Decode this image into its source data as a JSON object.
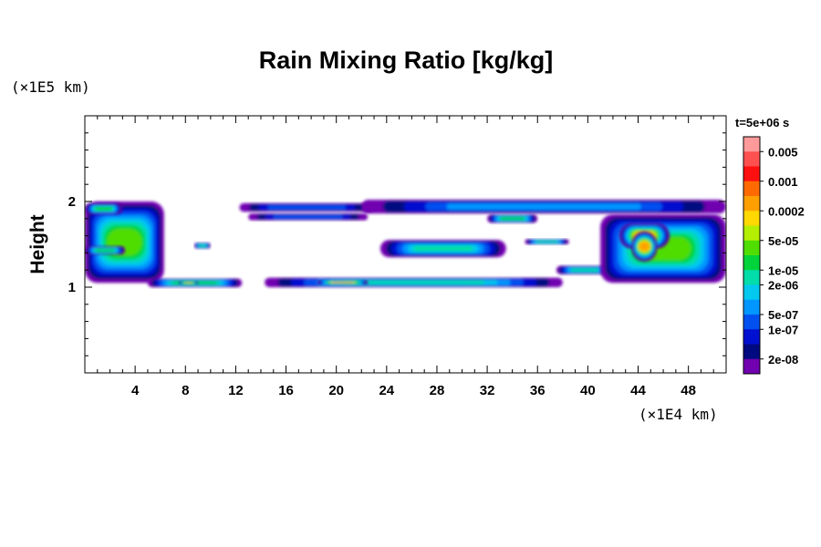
{
  "chart_data": {
    "type": "heatmap",
    "title": "Rain Mixing Ratio [kg/kg]",
    "ylabel": "Height",
    "xunit": "(×1E4 km)",
    "yunit": "(×1E5 km)",
    "time_label": "t=5e+06 s",
    "x_range": [
      0,
      51
    ],
    "y_range": [
      0,
      3
    ],
    "x_ticks": [
      4,
      8,
      12,
      16,
      20,
      24,
      28,
      32,
      36,
      40,
      44,
      48
    ],
    "y_ticks": [
      1,
      2
    ],
    "colorbar": {
      "levels": [
        "0.005",
        "0.001",
        "0.0002",
        "5e-05",
        "1e-05",
        "2e-06",
        "5e-07",
        "1e-07",
        "2e-08"
      ],
      "colors": [
        "#ff9a9a",
        "#ff5050",
        "#ff1010",
        "#ff6a00",
        "#ffa000",
        "#ffd800",
        "#b4ee00",
        "#50dd00",
        "#00d43a",
        "#00dcaa",
        "#00c8ee",
        "#0096ff",
        "#0050f0",
        "#0010d0",
        "#000a80",
        "#7000b0"
      ]
    },
    "bands": [
      {
        "x": [
          0,
          6.3
        ],
        "y": [
          1.05,
          2.0
        ],
        "level": 7
      },
      {
        "x": [
          0,
          3.0
        ],
        "y": [
          1.85,
          1.98
        ],
        "level": 8
      },
      {
        "x": [
          0,
          3.2
        ],
        "y": [
          1.38,
          1.48
        ],
        "level": 8
      },
      {
        "x": [
          5.0,
          12.5
        ],
        "y": [
          1.0,
          1.1
        ],
        "level": 8
      },
      {
        "x": [
          7.5,
          9.0
        ],
        "y": [
          1.03,
          1.07
        ],
        "level": 5
      },
      {
        "x": [
          8.7,
          10.0
        ],
        "y": [
          1.45,
          1.52
        ],
        "level": 9
      },
      {
        "x": [
          12.3,
          23.0
        ],
        "y": [
          1.88,
          1.98
        ],
        "level": 12
      },
      {
        "x": [
          13.0,
          22.5
        ],
        "y": [
          1.78,
          1.86
        ],
        "level": 12
      },
      {
        "x": [
          14.3,
          38.0
        ],
        "y": [
          1.0,
          1.11
        ],
        "level": 9
      },
      {
        "x": [
          18.5,
          22.5
        ],
        "y": [
          1.03,
          1.08
        ],
        "level": 4
      },
      {
        "x": [
          22.0,
          51.0
        ],
        "y": [
          1.86,
          2.02
        ],
        "level": 11
      },
      {
        "x": [
          23.5,
          33.5
        ],
        "y": [
          1.35,
          1.55
        ],
        "level": 9
      },
      {
        "x": [
          35.0,
          38.5
        ],
        "y": [
          1.5,
          1.56
        ],
        "level": 9
      },
      {
        "x": [
          37.5,
          42.0
        ],
        "y": [
          1.15,
          1.25
        ],
        "level": 9
      },
      {
        "x": [
          32.0,
          36.0
        ],
        "y": [
          1.75,
          1.85
        ],
        "level": 8
      },
      {
        "x": [
          41.0,
          51.0
        ],
        "y": [
          1.05,
          1.85
        ],
        "level": 7
      },
      {
        "x": [
          42.5,
          46.5
        ],
        "y": [
          1.45,
          1.75
        ],
        "level": 5
      },
      {
        "x": [
          43.5,
          45.5
        ],
        "y": [
          1.3,
          1.65
        ],
        "level": 4
      }
    ]
  }
}
